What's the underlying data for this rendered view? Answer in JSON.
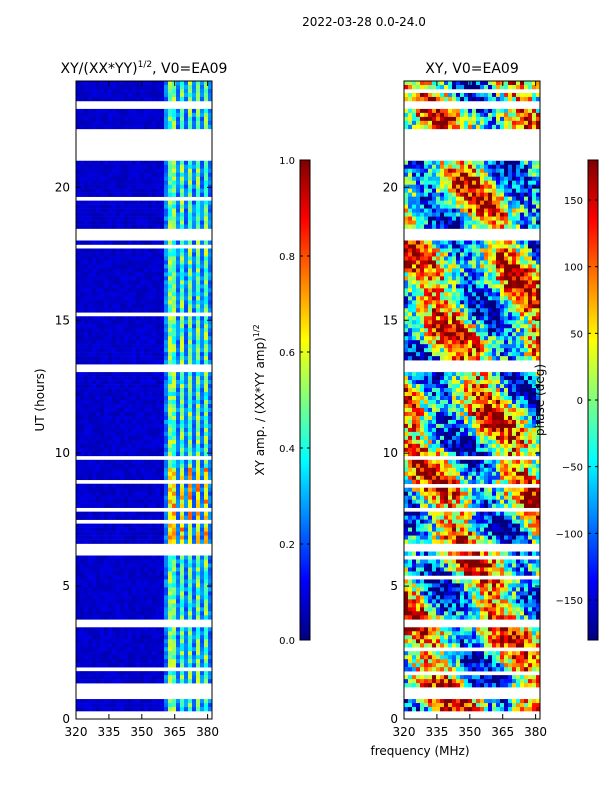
{
  "figure_title": "2022-03-28 0.0-24.0",
  "colormap": [
    "#00007f",
    "#0000ff",
    "#007fff",
    "#00ffff",
    "#7fff7f",
    "#ffff00",
    "#ff7f00",
    "#ff0000",
    "#7f0000"
  ],
  "chart_data": [
    {
      "type": "heatmap",
      "title_main": "XY/(XX*YY)",
      "title_sup": "1/2",
      "title_tail": ", V0=EA09",
      "xlabel": "",
      "ylabel": "UT (hours)",
      "xlim": [
        320,
        382
      ],
      "ylim": [
        0,
        24
      ],
      "xticks": [
        320,
        335,
        350,
        365,
        380
      ],
      "yticks": [
        0,
        5,
        10,
        15,
        20
      ],
      "colorbar": {
        "label_main": "XY amp. / (XX*YY amp)",
        "label_sup": "1/2",
        "range": [
          0.0,
          1.0
        ],
        "ticks": [
          "0.0",
          "0.2",
          "0.4",
          "0.6",
          "0.8",
          "1.0"
        ]
      },
      "gaps_hours": [
        [
          0.0,
          0.3
        ],
        [
          0.7,
          1.2
        ],
        [
          23.0,
          23.2
        ],
        [
          21.0,
          22.2
        ],
        [
          18.0,
          18.4
        ],
        [
          17.2,
          17.3
        ],
        [
          13.0,
          13.3
        ],
        [
          9.7,
          9.9
        ],
        [
          6.3,
          6.6
        ],
        [
          3.5,
          3.7
        ]
      ],
      "bright_channels_MHz": [
        [
          362,
          365
        ],
        [
          367,
          369
        ],
        [
          371,
          373
        ],
        [
          375,
          377
        ],
        [
          379,
          381
        ]
      ]
    },
    {
      "type": "heatmap",
      "title_main": "XY, V0=EA09",
      "xlabel": "frequency (MHz)",
      "ylabel": "",
      "xlim": [
        320,
        382
      ],
      "ylim": [
        0,
        24
      ],
      "xticks": [
        320,
        335,
        350,
        365,
        380
      ],
      "yticks": [
        0,
        5,
        10,
        15,
        20
      ],
      "colorbar": {
        "label_main": "phase (deg)",
        "range": [
          -180,
          180
        ],
        "ticks": [
          "-150",
          "-100",
          "-50",
          "0",
          "50",
          "100",
          "150"
        ]
      },
      "gaps_hours": [
        [
          0.0,
          0.3
        ],
        [
          0.7,
          1.2
        ],
        [
          23.0,
          23.2
        ],
        [
          21.0,
          22.2
        ],
        [
          18.0,
          18.4
        ],
        [
          17.2,
          17.3
        ],
        [
          13.0,
          13.3
        ],
        [
          9.7,
          9.9
        ],
        [
          6.3,
          6.6
        ],
        [
          3.5,
          3.7
        ]
      ]
    }
  ]
}
